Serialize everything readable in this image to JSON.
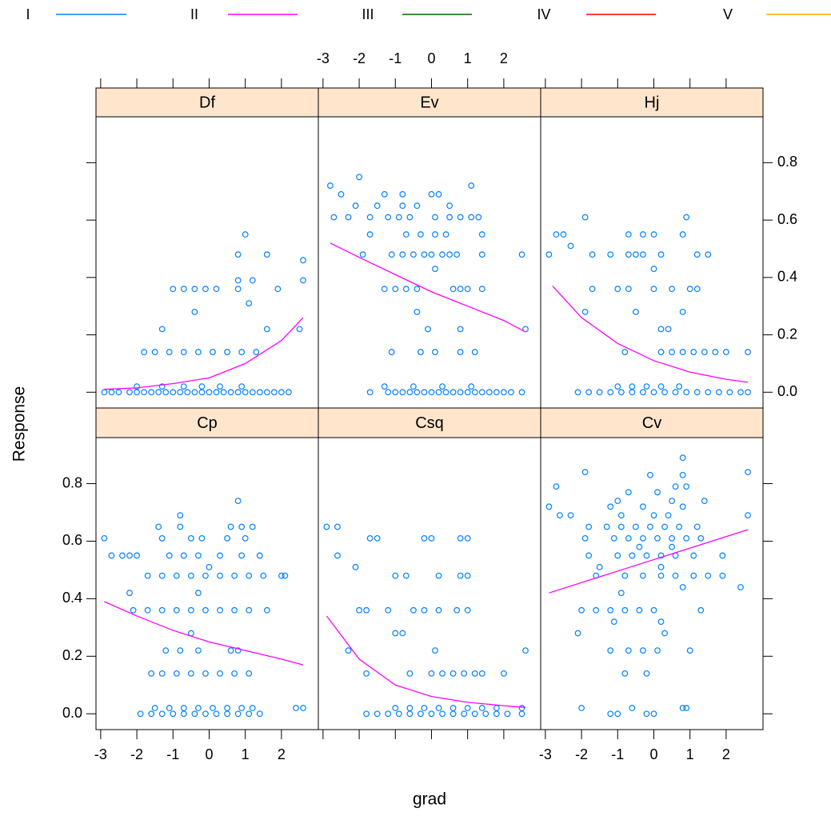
{
  "chart_data": {
    "type": "scatter",
    "xlabel": "grad",
    "ylabel": "Response",
    "xlim": [
      -3.13,
      3.02
    ],
    "ylim": [
      -0.055,
      0.96
    ],
    "xticks": [
      -3,
      -2,
      -1,
      0,
      1,
      2
    ],
    "yticks": [
      {
        "value": 0,
        "label": "0.0"
      },
      0.2,
      0.4,
      0.6,
      0.8
    ],
    "point_color": "#0080ff",
    "fit_color": "#ff00ff",
    "strip_color": "#ffe5cc",
    "series": [
      {
        "name": "I",
        "color": "#0080ff"
      },
      {
        "name": "II",
        "color": "#ff00ff"
      },
      {
        "name": "III",
        "color": "#006400"
      },
      {
        "name": "IV",
        "color": "#ff0000"
      },
      {
        "name": "V",
        "color": "#ffa500"
      }
    ],
    "panels": [
      {
        "name": "Df",
        "x": [
          -2.9,
          -2.7,
          -2.5,
          -2.2,
          -2.0,
          -1.8,
          -1.6,
          -1.4,
          -1.2,
          -1.0,
          -0.8,
          -0.6,
          -0.4,
          -0.2,
          0,
          0.2,
          0.4,
          0.6,
          0.8,
          1.0,
          1.2,
          1.4,
          1.6,
          1.8,
          2.0,
          2.2,
          -2.0,
          -1.3,
          -0.7,
          -0.2,
          0.3,
          0.9,
          -1.8,
          -1.5,
          -1.1,
          -0.7,
          -0.3,
          0.1,
          0.5,
          0.9,
          1.3,
          -1.3,
          1.6,
          2.5,
          -0.4,
          1.1,
          -1.0,
          -0.7,
          -0.4,
          -0.1,
          0.2,
          0.8,
          1.9,
          0.8,
          1.2,
          2.6,
          2.6,
          0.8,
          1.6,
          1.0
        ],
        "values": [
          0,
          0,
          0,
          0,
          0,
          0,
          0,
          0,
          0,
          0,
          0,
          0,
          0,
          0,
          0,
          0,
          0,
          0,
          0,
          0,
          0,
          0,
          0,
          0,
          0,
          0,
          0.02,
          0.02,
          0.02,
          0.02,
          0.02,
          0.02,
          0.14,
          0.14,
          0.14,
          0.14,
          0.14,
          0.14,
          0.14,
          0.14,
          0.14,
          0.22,
          0.22,
          0.22,
          0.28,
          0.31,
          0.36,
          0.36,
          0.36,
          0.36,
          0.36,
          0.36,
          0.36,
          0.39,
          0.39,
          0.39,
          0.46,
          0.48,
          0.48,
          0.55
        ],
        "fit": {
          "x": [
            -2.9,
            -2,
            -1,
            0,
            1,
            2,
            2.6
          ],
          "values": [
            0.01,
            0.015,
            0.03,
            0.05,
            0.1,
            0.18,
            0.26
          ]
        }
      },
      {
        "name": "Ev",
        "x": [
          -1.7,
          -1.2,
          -1.0,
          -0.8,
          -0.6,
          -0.4,
          -0.2,
          0,
          0.2,
          0.4,
          0.6,
          0.8,
          1.0,
          1.2,
          1.4,
          1.6,
          1.8,
          2.0,
          2.2,
          2.5,
          -1.3,
          -0.5,
          0.3,
          1.1,
          -1.1,
          -0.3,
          0.1,
          0.8,
          1.2,
          -0.1,
          0.8,
          2.6,
          -0.4,
          -1.3,
          -1.0,
          -0.7,
          -0.4,
          0.6,
          0.8,
          1.0,
          1.4,
          0.1,
          -1.9,
          -1.1,
          -0.8,
          -0.5,
          -0.2,
          0,
          0.3,
          0.5,
          0.7,
          1.4,
          2.5,
          -1.7,
          -0.7,
          -0.3,
          0.1,
          0.4,
          1.4,
          -2.7,
          -2.3,
          -1.7,
          -1.2,
          -0.9,
          -0.6,
          0.1,
          0.5,
          0.8,
          1.1,
          1.3,
          -2.1,
          -1.5,
          -0.8,
          -0.4,
          0.5,
          -2.5,
          -1.3,
          -0.8,
          0,
          0.2,
          -2.8,
          1.1,
          -2.0
        ],
        "values": [
          0,
          0,
          0,
          0,
          0,
          0,
          0,
          0,
          0,
          0,
          0,
          0,
          0,
          0,
          0,
          0,
          0,
          0,
          0,
          0,
          0.02,
          0.02,
          0.02,
          0.02,
          0.14,
          0.14,
          0.14,
          0.14,
          0.14,
          0.22,
          0.22,
          0.22,
          0.28,
          0.36,
          0.36,
          0.36,
          0.36,
          0.36,
          0.36,
          0.36,
          0.36,
          0.43,
          0.48,
          0.48,
          0.48,
          0.48,
          0.48,
          0.48,
          0.48,
          0.48,
          0.48,
          0.48,
          0.48,
          0.55,
          0.55,
          0.55,
          0.55,
          0.55,
          0.55,
          0.61,
          0.61,
          0.61,
          0.61,
          0.61,
          0.61,
          0.61,
          0.61,
          0.61,
          0.61,
          0.61,
          0.65,
          0.65,
          0.65,
          0.65,
          0.65,
          0.69,
          0.69,
          0.69,
          0.69,
          0.69,
          0.72,
          0.72,
          0.75
        ],
        "fit": {
          "x": [
            -2.8,
            -2,
            -1,
            0,
            1,
            2,
            2.6
          ],
          "values": [
            0.52,
            0.47,
            0.41,
            0.35,
            0.3,
            0.25,
            0.21
          ]
        }
      },
      {
        "name": "Hj",
        "x": [
          -2.1,
          -1.8,
          -1.5,
          -1.2,
          -0.9,
          -0.6,
          -0.3,
          0,
          0.3,
          0.6,
          0.9,
          1.2,
          1.5,
          1.8,
          2.1,
          2.4,
          2.6,
          -1.0,
          -0.6,
          -0.2,
          0.2,
          0.7,
          -0.8,
          0.2,
          0.5,
          0.8,
          1.1,
          1.4,
          1.7,
          2.0,
          2.6,
          0.2,
          0.4,
          -1.9,
          -0.5,
          0.8,
          -1.7,
          -1.0,
          -0.7,
          0,
          0.5,
          1.0,
          1.2,
          0,
          -2.9,
          -1.7,
          -1.2,
          -0.7,
          -0.5,
          -0.3,
          0.2,
          1.2,
          1.5,
          -2.3,
          -2.7,
          -2.5,
          -0.7,
          -0.3,
          0,
          0.8,
          -1.9,
          0.9
        ],
        "values": [
          0,
          0,
          0,
          0,
          0,
          0,
          0,
          0,
          0,
          0,
          0,
          0,
          0,
          0,
          0,
          0,
          0,
          0.02,
          0.02,
          0.02,
          0.02,
          0.02,
          0.14,
          0.14,
          0.14,
          0.14,
          0.14,
          0.14,
          0.14,
          0.14,
          0.14,
          0.22,
          0.22,
          0.28,
          0.28,
          0.28,
          0.36,
          0.36,
          0.36,
          0.36,
          0.36,
          0.36,
          0.36,
          0.43,
          0.48,
          0.48,
          0.48,
          0.48,
          0.48,
          0.48,
          0.48,
          0.48,
          0.48,
          0.51,
          0.55,
          0.55,
          0.55,
          0.55,
          0.55,
          0.55,
          0.61,
          0.61
        ],
        "fit": {
          "x": [
            -2.8,
            -2,
            -1,
            0,
            1,
            2,
            2.6
          ],
          "values": [
            0.37,
            0.26,
            0.17,
            0.11,
            0.07,
            0.045,
            0.035
          ]
        }
      },
      {
        "name": "Cp",
        "x": [
          -1.9,
          -1.6,
          -1.3,
          -1.0,
          -0.7,
          -0.4,
          -0.1,
          0.2,
          0.5,
          0.8,
          1.1,
          1.4,
          -1.5,
          -1.1,
          -0.7,
          -0.3,
          0.1,
          0.5,
          0.9,
          1.2,
          2.4,
          2.6,
          -1.6,
          -1.3,
          -0.9,
          -0.5,
          -0.1,
          0.3,
          0.7,
          1.1,
          -1.2,
          -0.8,
          -0.3,
          0.6,
          0.8,
          -0.5,
          -2.1,
          -1.7,
          -1.3,
          -0.9,
          -0.5,
          -0.1,
          0.3,
          0.7,
          1.1,
          1.6,
          -2.2,
          -0.3,
          -1.7,
          -1.3,
          -0.9,
          -0.5,
          -0.1,
          0.3,
          0.7,
          1.1,
          1.5,
          2.0,
          2.1,
          0,
          -2.7,
          -2.4,
          -2.2,
          -2.0,
          -1.1,
          -0.7,
          -0.3,
          0.3,
          0.9,
          1.4,
          -2.9,
          -1.3,
          -0.5,
          -0.2,
          0.5,
          1.0,
          -1.4,
          -0.8,
          0.6,
          0.9,
          1.2,
          -0.8,
          0.8
        ],
        "values": [
          0,
          0,
          0,
          0,
          0,
          0,
          0,
          0,
          0,
          0,
          0,
          0,
          0.02,
          0.02,
          0.02,
          0.02,
          0.02,
          0.02,
          0.02,
          0.02,
          0.02,
          0.02,
          0.14,
          0.14,
          0.14,
          0.14,
          0.14,
          0.14,
          0.14,
          0.14,
          0.22,
          0.22,
          0.22,
          0.22,
          0.22,
          0.28,
          0.36,
          0.36,
          0.36,
          0.36,
          0.36,
          0.36,
          0.36,
          0.36,
          0.36,
          0.36,
          0.42,
          0.42,
          0.48,
          0.48,
          0.48,
          0.48,
          0.48,
          0.48,
          0.48,
          0.48,
          0.48,
          0.48,
          0.48,
          0.51,
          0.55,
          0.55,
          0.55,
          0.55,
          0.55,
          0.55,
          0.55,
          0.55,
          0.55,
          0.55,
          0.61,
          0.61,
          0.61,
          0.61,
          0.61,
          0.61,
          0.65,
          0.65,
          0.65,
          0.65,
          0.65,
          0.69,
          0.74
        ],
        "fit": {
          "x": [
            -2.9,
            -2,
            -1,
            0,
            1,
            2,
            2.6
          ],
          "values": [
            0.39,
            0.34,
            0.29,
            0.25,
            0.22,
            0.19,
            0.17
          ]
        }
      },
      {
        "name": "Csq",
        "x": [
          -1.8,
          -1.5,
          -1.2,
          -0.9,
          -0.6,
          -0.3,
          0,
          0.3,
          0.6,
          0.9,
          1.2,
          1.5,
          1.8,
          2.1,
          2.5,
          -1.0,
          -0.6,
          -0.2,
          0.2,
          0.6,
          1.0,
          1.4,
          1.8,
          2.5,
          -1.8,
          -0.6,
          0,
          0.3,
          0.6,
          0.9,
          1.2,
          1.4,
          2.0,
          -2.3,
          0.1,
          2.6,
          -1.0,
          -0.8,
          -2.0,
          -1.8,
          -1.2,
          -0.5,
          -0.2,
          0.2,
          0.7,
          1.0,
          -1.0,
          -0.7,
          0.2,
          0.8,
          1.0,
          -2.1,
          -2.6,
          -1.7,
          -1.5,
          -0.2,
          0,
          0.8,
          1.0,
          -2.9,
          -2.6
        ],
        "values": [
          0,
          0,
          0,
          0,
          0,
          0,
          0,
          0,
          0,
          0,
          0,
          0,
          0,
          0,
          0,
          0.02,
          0.02,
          0.02,
          0.02,
          0.02,
          0.02,
          0.02,
          0.02,
          0.02,
          0.14,
          0.14,
          0.14,
          0.14,
          0.14,
          0.14,
          0.14,
          0.14,
          0.14,
          0.22,
          0.22,
          0.22,
          0.28,
          0.28,
          0.36,
          0.36,
          0.36,
          0.36,
          0.36,
          0.36,
          0.36,
          0.36,
          0.48,
          0.48,
          0.48,
          0.48,
          0.48,
          0.51,
          0.55,
          0.61,
          0.61,
          0.61,
          0.61,
          0.61,
          0.61,
          0.65,
          0.65
        ],
        "fit": {
          "x": [
            -2.9,
            -2,
            -1,
            0,
            1,
            2,
            2.6
          ],
          "values": [
            0.34,
            0.19,
            0.1,
            0.06,
            0.04,
            0.028,
            0.022
          ]
        }
      },
      {
        "name": "Cv",
        "x": [
          -1.2,
          -1.0,
          -0.2,
          0,
          -2.0,
          -0.6,
          0.8,
          0.9,
          -0.8,
          -0.2,
          -1.2,
          -0.7,
          -0.3,
          0.1,
          1.0,
          -2.1,
          0.3,
          -1.1,
          0.2,
          -2.0,
          -1.6,
          -1.2,
          -0.8,
          -0.4,
          0,
          1.3,
          -0.9,
          0.8,
          2.4,
          -1.6,
          -0.8,
          -0.3,
          0.2,
          0.6,
          1.1,
          1.5,
          1.9,
          -1.5,
          0.2,
          -1.8,
          -1.0,
          -0.6,
          -0.2,
          0.2,
          0.6,
          1.1,
          1.9,
          -0.4,
          0.5,
          -1.9,
          -1.1,
          -0.7,
          -0.3,
          0.1,
          0.5,
          0.9,
          1.3,
          -1.8,
          -1.3,
          -0.9,
          -0.5,
          -0.1,
          0.3,
          0.7,
          1.2,
          -2.6,
          -2.3,
          -0.9,
          0,
          0.4,
          2.6,
          -2.9,
          -1.2,
          -0.3,
          0.8,
          -1.0,
          0.5,
          1.4,
          -0.7,
          0.1,
          -2.7,
          0.6,
          0.9,
          -0.1,
          0.8,
          -1.9,
          2.6,
          0.8
        ],
        "values": [
          0,
          0,
          0,
          0,
          0.02,
          0.02,
          0.02,
          0.02,
          0.14,
          0.14,
          0.22,
          0.22,
          0.22,
          0.22,
          0.22,
          0.28,
          0.28,
          0.32,
          0.32,
          0.36,
          0.36,
          0.36,
          0.36,
          0.36,
          0.36,
          0.36,
          0.42,
          0.44,
          0.44,
          0.48,
          0.48,
          0.48,
          0.48,
          0.48,
          0.48,
          0.48,
          0.48,
          0.51,
          0.51,
          0.55,
          0.55,
          0.55,
          0.55,
          0.55,
          0.55,
          0.55,
          0.55,
          0.58,
          0.58,
          0.61,
          0.61,
          0.61,
          0.61,
          0.61,
          0.61,
          0.61,
          0.61,
          0.65,
          0.65,
          0.65,
          0.65,
          0.65,
          0.65,
          0.65,
          0.65,
          0.69,
          0.69,
          0.69,
          0.69,
          0.69,
          0.69,
          0.72,
          0.72,
          0.72,
          0.72,
          0.74,
          0.74,
          0.74,
          0.77,
          0.77,
          0.79,
          0.79,
          0.79,
          0.83,
          0.83,
          0.84,
          0.84,
          0.89
        ],
        "fit": {
          "x": [
            -2.9,
            2.6
          ],
          "values": [
            0.42,
            0.64
          ]
        }
      }
    ]
  }
}
